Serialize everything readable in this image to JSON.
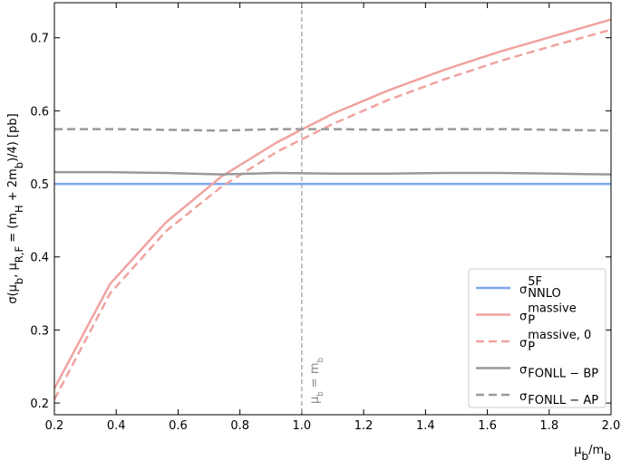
{
  "chart_data": {
    "type": "line",
    "xlabel": [
      "μ",
      {
        "sub": "b"
      },
      "/m",
      {
        "sub": "b"
      }
    ],
    "ylabel": [
      "σ(μ",
      {
        "sub": "b"
      },
      ", μ",
      {
        "sub": "R,F"
      },
      " = (m",
      {
        "sub": "H"
      },
      " + 2m",
      {
        "sub": "b"
      },
      ")/4) [pb]"
    ],
    "vline": {
      "x": 1,
      "label": [
        "μ",
        {
          "sub": "b"
        },
        " = m",
        {
          "sub": "b"
        }
      ]
    },
    "x": [
      0.2,
      0.38,
      0.56,
      0.74,
      0.92,
      1.1,
      1.28,
      1.46,
      1.64,
      1.82,
      2.0
    ],
    "series": [
      {
        "name": {
          "base": "σ",
          "sub": "NNLO",
          "sup": "5F"
        },
        "color": "#7ea6ee",
        "dash": false,
        "values": [
          0.5,
          0.5,
          0.5,
          0.5,
          0.5,
          0.5,
          0.5,
          0.5,
          0.5,
          0.5,
          0.5
        ]
      },
      {
        "name": {
          "base": "σ",
          "sub": "P",
          "sup": "massive"
        },
        "color": "#f0a3a0",
        "dash": false,
        "values": [
          0.22,
          0.363,
          0.447,
          0.51,
          0.557,
          0.596,
          0.628,
          0.656,
          0.681,
          0.703,
          0.725
        ]
      },
      {
        "name": {
          "base": "σ",
          "sub": "P",
          "sup": "massive, 0"
        },
        "color": "#f0a3a0",
        "dash": true,
        "values": [
          0.205,
          0.35,
          0.435,
          0.496,
          0.544,
          0.582,
          0.615,
          0.643,
          0.668,
          0.69,
          0.711
        ]
      },
      {
        "name": {
          "base": "σ",
          "sub": "FONLL − BP"
        },
        "color": "#999999",
        "dash": false,
        "values": [
          0.516,
          0.516,
          0.515,
          0.513,
          0.515,
          0.514,
          0.514,
          0.515,
          0.515,
          0.514,
          0.513
        ]
      },
      {
        "name": {
          "base": "σ",
          "sub": "FONLL − AP"
        },
        "color": "#999999",
        "dash": true,
        "values": [
          0.575,
          0.575,
          0.574,
          0.573,
          0.575,
          0.575,
          0.574,
          0.575,
          0.575,
          0.574,
          0.573
        ]
      }
    ],
    "xlim": [
      0.2,
      2.0
    ],
    "ylim": [
      0.184,
      0.748
    ],
    "xticks": [
      0.2,
      0.4,
      0.6,
      0.8,
      {
        "value": 1,
        "label": "1.0"
      },
      1.2,
      1.4,
      1.6,
      1.8,
      {
        "value": 2,
        "label": "2.0"
      }
    ],
    "yticks": [
      0.2,
      0.3,
      0.4,
      0.5,
      0.6,
      0.7
    ],
    "legend": "lower right"
  }
}
